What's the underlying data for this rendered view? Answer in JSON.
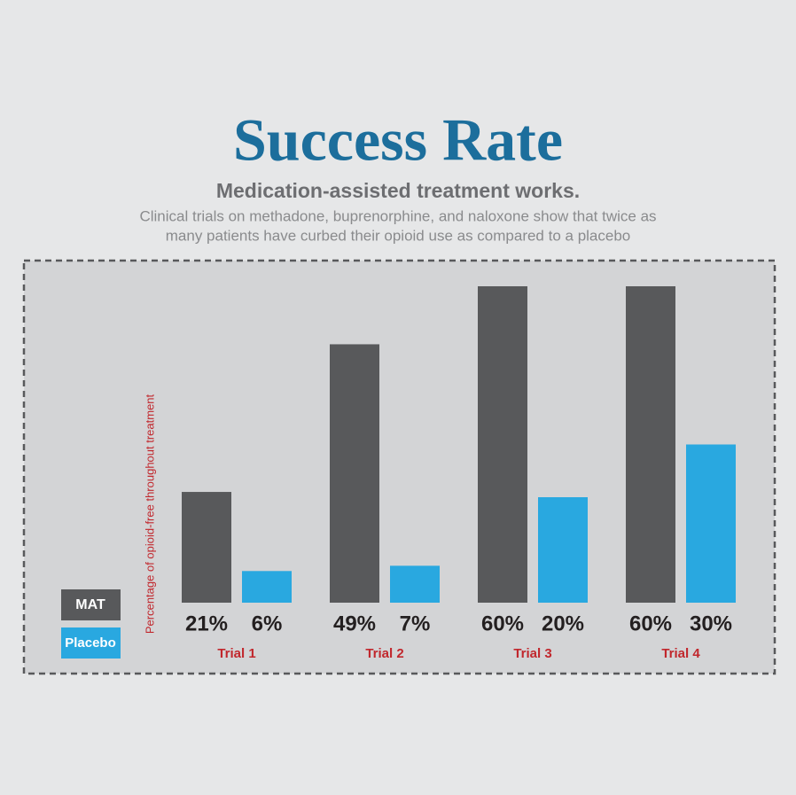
{
  "chart_data": {
    "type": "bar",
    "title": "Success Rate",
    "subtitle": "Medication-assisted treatment works.",
    "description": [
      "Clinical trials on methadone, buprenorphine, and naloxone show that twice as",
      "many patients have curbed their opioid use as compared to a placebo"
    ],
    "y_label": "Percentage of opioid-free throughout treatment",
    "categories": [
      "Trial 1",
      "Trial 2",
      "Trial 3",
      "Trial 4"
    ],
    "series": [
      {
        "name": "MAT",
        "color": "#58595b",
        "values": [
          21,
          49,
          60,
          60
        ],
        "value_labels": [
          "21%",
          "49%",
          "60%",
          "60%"
        ]
      },
      {
        "name": "Placebo",
        "color": "#29a8e0",
        "values": [
          6,
          7,
          20,
          30
        ],
        "value_labels": [
          "6%",
          "7%",
          "20%",
          "30%"
        ]
      }
    ]
  }
}
